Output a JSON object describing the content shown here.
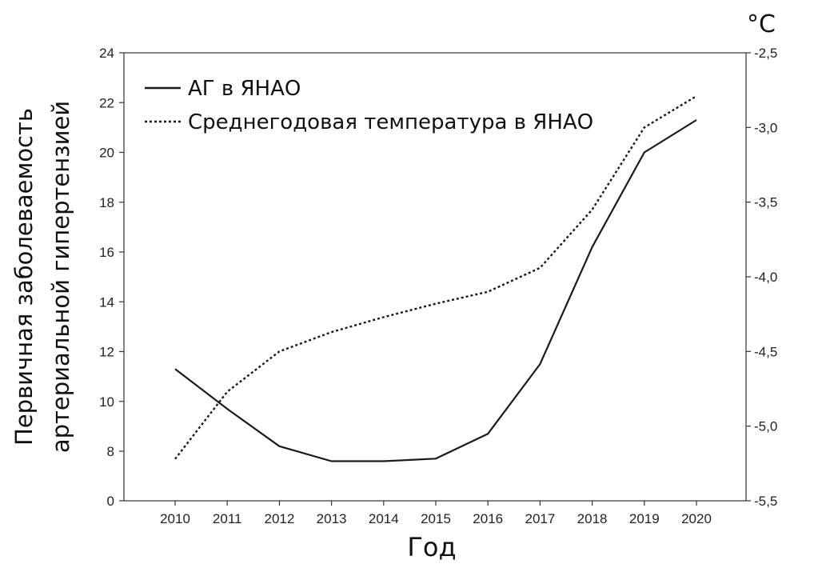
{
  "chart_data": {
    "type": "line",
    "x": [
      2010,
      2011,
      2012,
      2013,
      2014,
      2015,
      2016,
      2017,
      2018,
      2019,
      2020
    ],
    "x_tick_labels": [
      "2010",
      "2011",
      "2012",
      "2013",
      "2014",
      "2015",
      "2016",
      "2017",
      "2018",
      "2019",
      "2020"
    ],
    "xlabel": "Год",
    "ylabel_lines": [
      "Первичная заболеваемость",
      "артериальной гипертензией"
    ],
    "y2label": "°C",
    "ylim": [
      0,
      24
    ],
    "y_ticks": [
      0,
      8,
      10,
      12,
      14,
      16,
      18,
      20,
      22,
      24
    ],
    "y_tick_labels": [
      "0",
      "8",
      "10",
      "12",
      "14",
      "16",
      "18",
      "20",
      "22",
      "24"
    ],
    "y2lim": [
      -5.5,
      -2.5
    ],
    "y2_ticks": [
      -5.5,
      -5.0,
      -4.5,
      -4.0,
      -3.5,
      -3.0,
      -2.5
    ],
    "y2_tick_labels": [
      "-5,5",
      "-5,0",
      "-4,5",
      "-4,0",
      "-3,5",
      "-3,0",
      "-2,5"
    ],
    "y_axis_break": "between 0 and 8",
    "grid": false,
    "legend_position": "top-left",
    "series": [
      {
        "name": "АГ в ЯНАО",
        "axis": "left",
        "style": "solid",
        "color": "#1a1a1a",
        "values": [
          11.3,
          9.7,
          8.2,
          7.6,
          7.6,
          7.7,
          8.7,
          11.5,
          16.2,
          20.0,
          21.3
        ]
      },
      {
        "name": "Среднегодовая температура в ЯНАО",
        "axis": "right",
        "style": "dotted",
        "color": "#1a1a1a",
        "values": [
          -5.22,
          -4.77,
          -4.5,
          -4.37,
          -4.27,
          -4.18,
          -4.1,
          -3.94,
          -3.55,
          -3.0,
          -2.79
        ]
      }
    ]
  }
}
